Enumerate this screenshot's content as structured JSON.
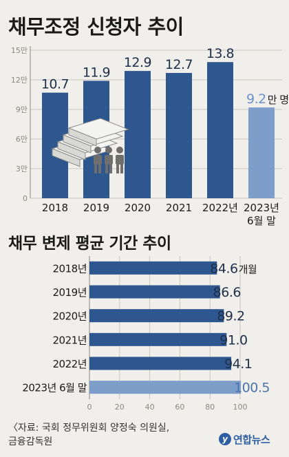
{
  "chart_data": [
    {
      "type": "bar",
      "title": "채무조정 신청자 추이",
      "categories": [
        "2018",
        "2019",
        "2020",
        "2021",
        "2022년",
        "2023년\n6월 말"
      ],
      "values": [
        10.7,
        11.9,
        12.9,
        12.7,
        13.8,
        9.2
      ],
      "value_labels": [
        "10.7",
        "11.9",
        "12.9",
        "12.7",
        "13.8",
        "9.2"
      ],
      "value_suffix_last": "만 명",
      "yticks": [
        "0",
        "3만",
        "6만",
        "9만",
        "12만",
        "15만"
      ],
      "ylim": [
        0,
        15
      ],
      "grid": true,
      "colors": {
        "bar": "#2d578e",
        "highlight": "#7d9ec9",
        "label": "#1e2f4a",
        "highlight_label": "#6b92c8"
      }
    },
    {
      "type": "bar",
      "orientation": "horizontal",
      "title": "채무 변제 평균 기간 추이",
      "categories": [
        "2018년",
        "2019년",
        "2020년",
        "2021년",
        "2022년",
        "2023년 6월 말"
      ],
      "values": [
        84.6,
        86.6,
        89.2,
        91.0,
        94.1,
        100.5
      ],
      "value_labels": [
        "84.6",
        "86.6",
        "89.2",
        "91.0",
        "94.1",
        "100.5"
      ],
      "value_suffix_first": "개월",
      "xticks": [
        "0",
        "20",
        "40",
        "60",
        "80",
        "100"
      ],
      "xlim": [
        0,
        100
      ],
      "grid": true,
      "colors": {
        "bar": "#2d578e",
        "highlight": "#7d9ec9",
        "label": "#1e2f4a",
        "highlight_label": "#4a73aa"
      }
    }
  ],
  "source": {
    "line1": "〈자료: 국회 정무위원회 양정숙 의원실,",
    "line2": "금융감독원"
  },
  "logo": {
    "mark": "y",
    "text": "연합뉴스"
  },
  "icons": [
    "money-stack-icon",
    "people-icon"
  ]
}
